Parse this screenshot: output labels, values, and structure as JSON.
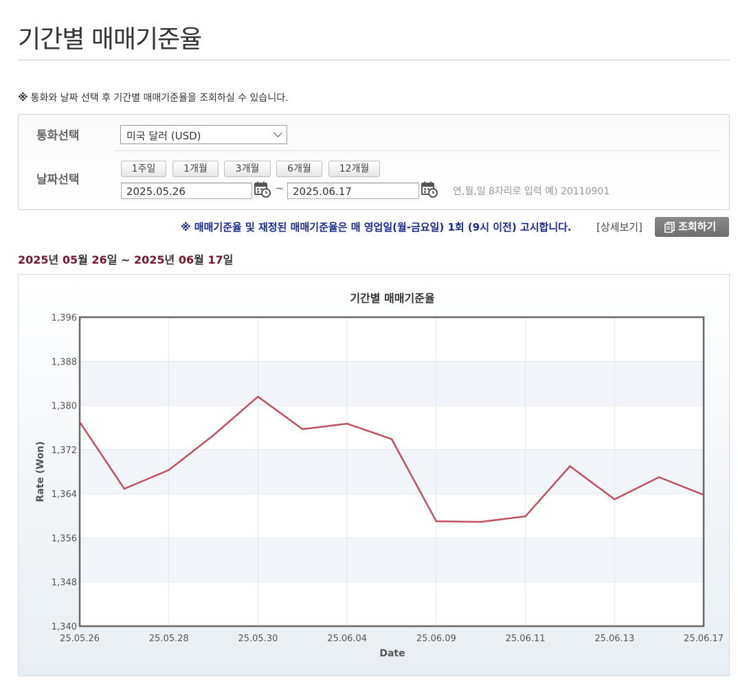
{
  "page": {
    "title": "기간별 매매기준율",
    "notice_mark": "※",
    "notice": "통화와 날짜 선택 후 기간별 매매기준율을 조회하실 수 있습니다."
  },
  "filter": {
    "currency_label": "통화선택",
    "currency_selected": "미국 달러 (USD)",
    "date_label": "날짜선택",
    "period_buttons": [
      "1주일",
      "1개월",
      "3개월",
      "6개월",
      "12개월"
    ],
    "start_date": "2025.05.26",
    "end_date": "2025.06.17",
    "separator": "~",
    "date_hint": "연,월,일 8자리로 입력 예) 20110901"
  },
  "announcement": "※ 매매기준율 및 재정된 매매기준율은 매 영업일(월-금요일) 1회 (9시 이전) 고시합니다.",
  "detail_link": "[상세보기]",
  "search_button": "조회하기",
  "range": {
    "start_year": "2025",
    "start_month": "05",
    "start_day": "26",
    "end_year": "2025",
    "end_month": "06",
    "end_day": "17",
    "year_unit": "년",
    "month_unit": "월",
    "day_unit": "일",
    "tilde": "~"
  },
  "colors": {
    "series": "#c0505f",
    "announcement": "#1a2a8c",
    "range": "#7a1730"
  },
  "chart_data": {
    "type": "line",
    "title": "기간별 매매기준율",
    "xlabel": "Date",
    "ylabel": "Rate (Won)",
    "ylim": [
      1340,
      1396
    ],
    "yticks": [
      "1,340",
      "1,348",
      "1,356",
      "1,364",
      "1,372",
      "1,380",
      "1,388",
      "1,396"
    ],
    "xtick_labels": [
      "25.05.26",
      "25.05.28",
      "25.05.30",
      "25.06.04",
      "25.06.09",
      "25.06.11",
      "25.06.13",
      "25.06.17"
    ],
    "grid": true,
    "series": [
      {
        "x": [
          "25.05.26",
          "25.05.27",
          "25.05.28",
          "25.05.29",
          "25.05.30",
          "25.06.02",
          "25.06.04",
          "25.06.05",
          "25.06.09",
          "25.06.10",
          "25.06.11",
          "25.06.12",
          "25.06.13",
          "25.06.16",
          "25.06.17"
        ],
        "values": [
          1377.0,
          1364.9,
          1368.3,
          1374.6,
          1381.6,
          1375.7,
          1376.7,
          1373.9,
          1359.0,
          1358.9,
          1359.9,
          1369.0,
          1363.0,
          1367.0,
          1363.8
        ]
      }
    ]
  }
}
